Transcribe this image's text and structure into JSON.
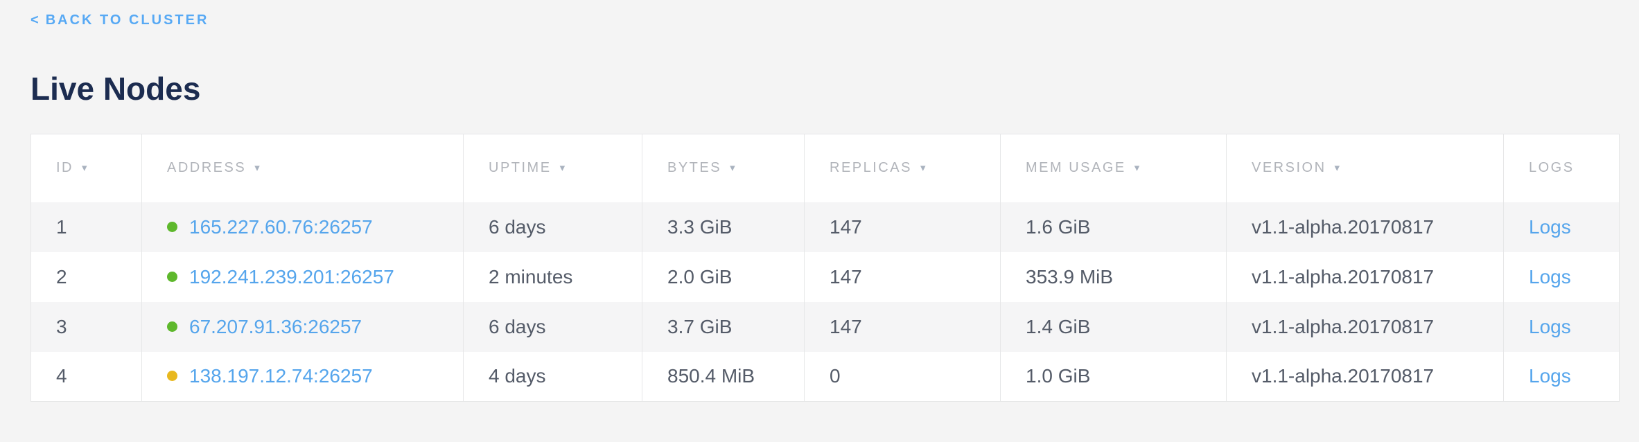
{
  "colors": {
    "page_background": "#f4f4f4",
    "table_background": "#ffffff",
    "alt_row_background": "#f5f5f6",
    "border": "#e6e7e8",
    "title_navy": "#1c2c50",
    "back_link_blue": "#57a9f4",
    "link_blue": "#55a5ec",
    "header_gray": "#b1b4ba",
    "body_text": "#545b68",
    "status_green": "#5eb82c",
    "status_yellow": "#e8b81f"
  },
  "header": {
    "back_chevron": "<",
    "back_link_label": "BACK TO CLUSTER",
    "page_title": "Live Nodes"
  },
  "table": {
    "sort_icon": "▾",
    "columns": [
      {
        "label": "ID",
        "sortable": true
      },
      {
        "label": "ADDRESS",
        "sortable": true
      },
      {
        "label": "UPTIME",
        "sortable": true
      },
      {
        "label": "BYTES",
        "sortable": true
      },
      {
        "label": "REPLICAS",
        "sortable": true
      },
      {
        "label": "MEM USAGE",
        "sortable": true
      },
      {
        "label": "VERSION",
        "sortable": true
      },
      {
        "label": "LOGS",
        "sortable": false
      }
    ],
    "rows": [
      {
        "id": "1",
        "status": "healthy",
        "status_color": "#5eb82c",
        "address": "165.227.60.76:26257",
        "uptime": "6 days",
        "bytes": "3.3 GiB",
        "replicas": "147",
        "mem_usage": "1.6 GiB",
        "version": "v1.1-alpha.20170817",
        "logs": "Logs"
      },
      {
        "id": "2",
        "status": "healthy",
        "status_color": "#5eb82c",
        "address": "192.241.239.201:26257",
        "uptime": "2 minutes",
        "bytes": "2.0 GiB",
        "replicas": "147",
        "mem_usage": "353.9 MiB",
        "version": "v1.1-alpha.20170817",
        "logs": "Logs"
      },
      {
        "id": "3",
        "status": "healthy",
        "status_color": "#5eb82c",
        "address": "67.207.91.36:26257",
        "uptime": "6 days",
        "bytes": "3.7 GiB",
        "replicas": "147",
        "mem_usage": "1.4 GiB",
        "version": "v1.1-alpha.20170817",
        "logs": "Logs"
      },
      {
        "id": "4",
        "status": "warning",
        "status_color": "#e8b81f",
        "address": "138.197.12.74:26257",
        "uptime": "4 days",
        "bytes": "850.4 MiB",
        "replicas": "0",
        "mem_usage": "1.0 GiB",
        "version": "v1.1-alpha.20170817",
        "logs": "Logs"
      }
    ]
  }
}
